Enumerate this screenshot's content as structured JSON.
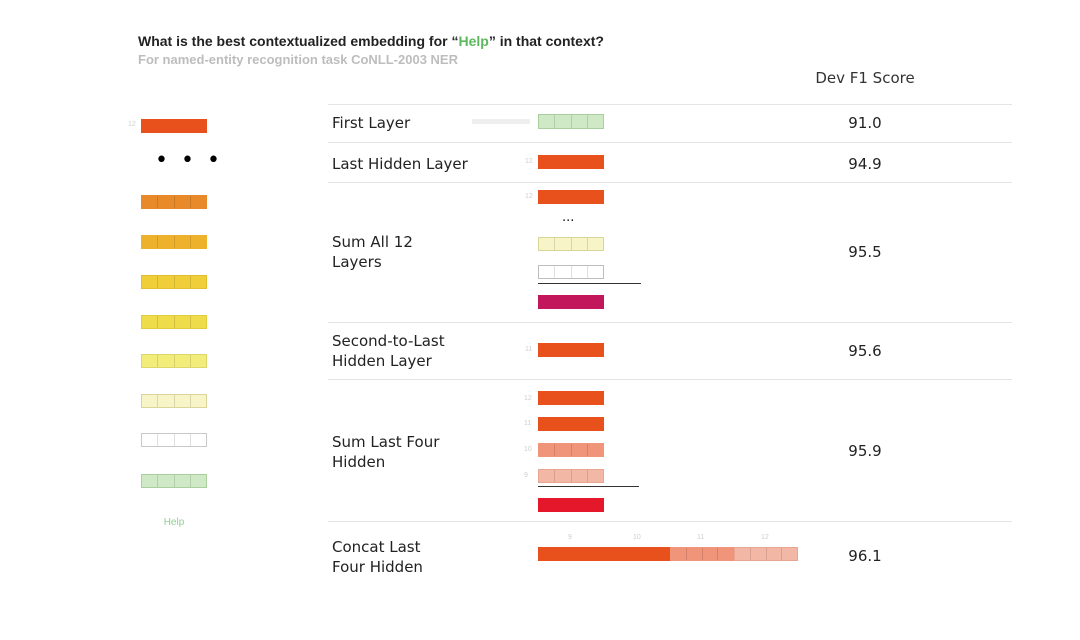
{
  "header": {
    "title_prefix": "What is the best contextualized embedding for “",
    "title_word": "Help",
    "title_suffix": "” in that context?",
    "subtitle": "For named-entity recognition task CoNLL-2003 NER",
    "column_header": "Dev F1 Score"
  },
  "left_stack": {
    "top_layer_index": "12",
    "ellipsis": "• • •",
    "word_label": "Help",
    "colors": [
      "#e8511c",
      "#e98a2a",
      "#eeb12b",
      "#efce3a",
      "#efdc4b",
      "#f2ec7a",
      "#f7f4c8",
      "#ffffff",
      "#cfe8c5"
    ]
  },
  "rows": [
    {
      "label": "First Layer",
      "score": "91.0"
    },
    {
      "label": "Last Hidden Layer",
      "score": "94.9"
    },
    {
      "label": "Sum All 12\nLayers",
      "score": "95.5"
    },
    {
      "label": "Second-to-Last\nHidden Layer",
      "score": "95.6"
    },
    {
      "label": "Sum Last Four\nHidden",
      "score": "95.9"
    },
    {
      "label": "Concat Last\nFour Hidden",
      "score": "96.1"
    }
  ],
  "row_tiny_labels": {
    "last_hidden": "12",
    "sum_all_top": "12",
    "second_to_last": "11",
    "sum_four": [
      "12",
      "11",
      "10",
      "9"
    ],
    "concat": [
      "9",
      "10",
      "11",
      "12"
    ]
  },
  "sum_all_ellipsis": "...",
  "colors": {
    "orange_red": "#e8511c",
    "magenta": "#c2185b",
    "red": "#e5172b",
    "salmon": "#f0947a",
    "light_salmon": "#f3b7a6",
    "pale_yellow": "#f7f4c8",
    "light_green": "#cfe8c5"
  }
}
